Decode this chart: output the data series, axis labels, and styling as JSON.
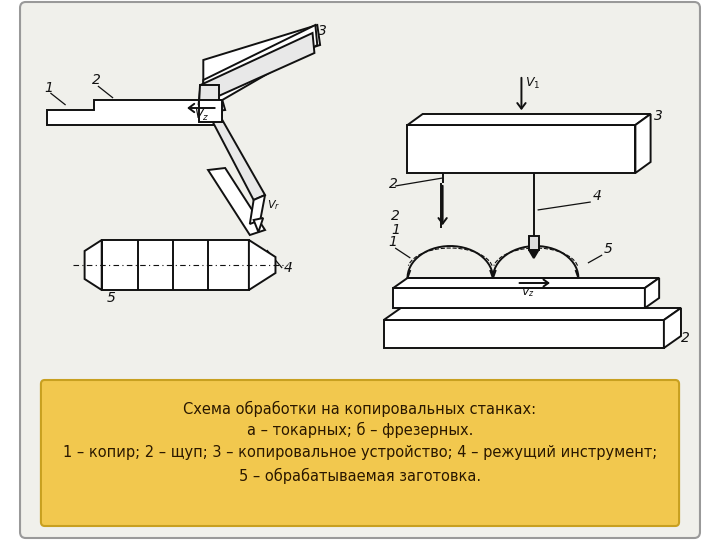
{
  "bg_color": "#ffffff",
  "card_bg": "#f0f0eb",
  "caption_bg": "#f2c84e",
  "caption_border": "#c8a020",
  "caption_text_color": "#2a1800",
  "caption_lines": [
    "Схема обработки на копировальных станках:",
    "а – токарных; б – фрезерных.",
    "1 – копир; 2 – щуп; 3 – копировальное устройство; 4 – режущий инструмент;",
    "5 – обрабатываемая заготовка."
  ],
  "dc": "#111111",
  "lw": 1.4
}
